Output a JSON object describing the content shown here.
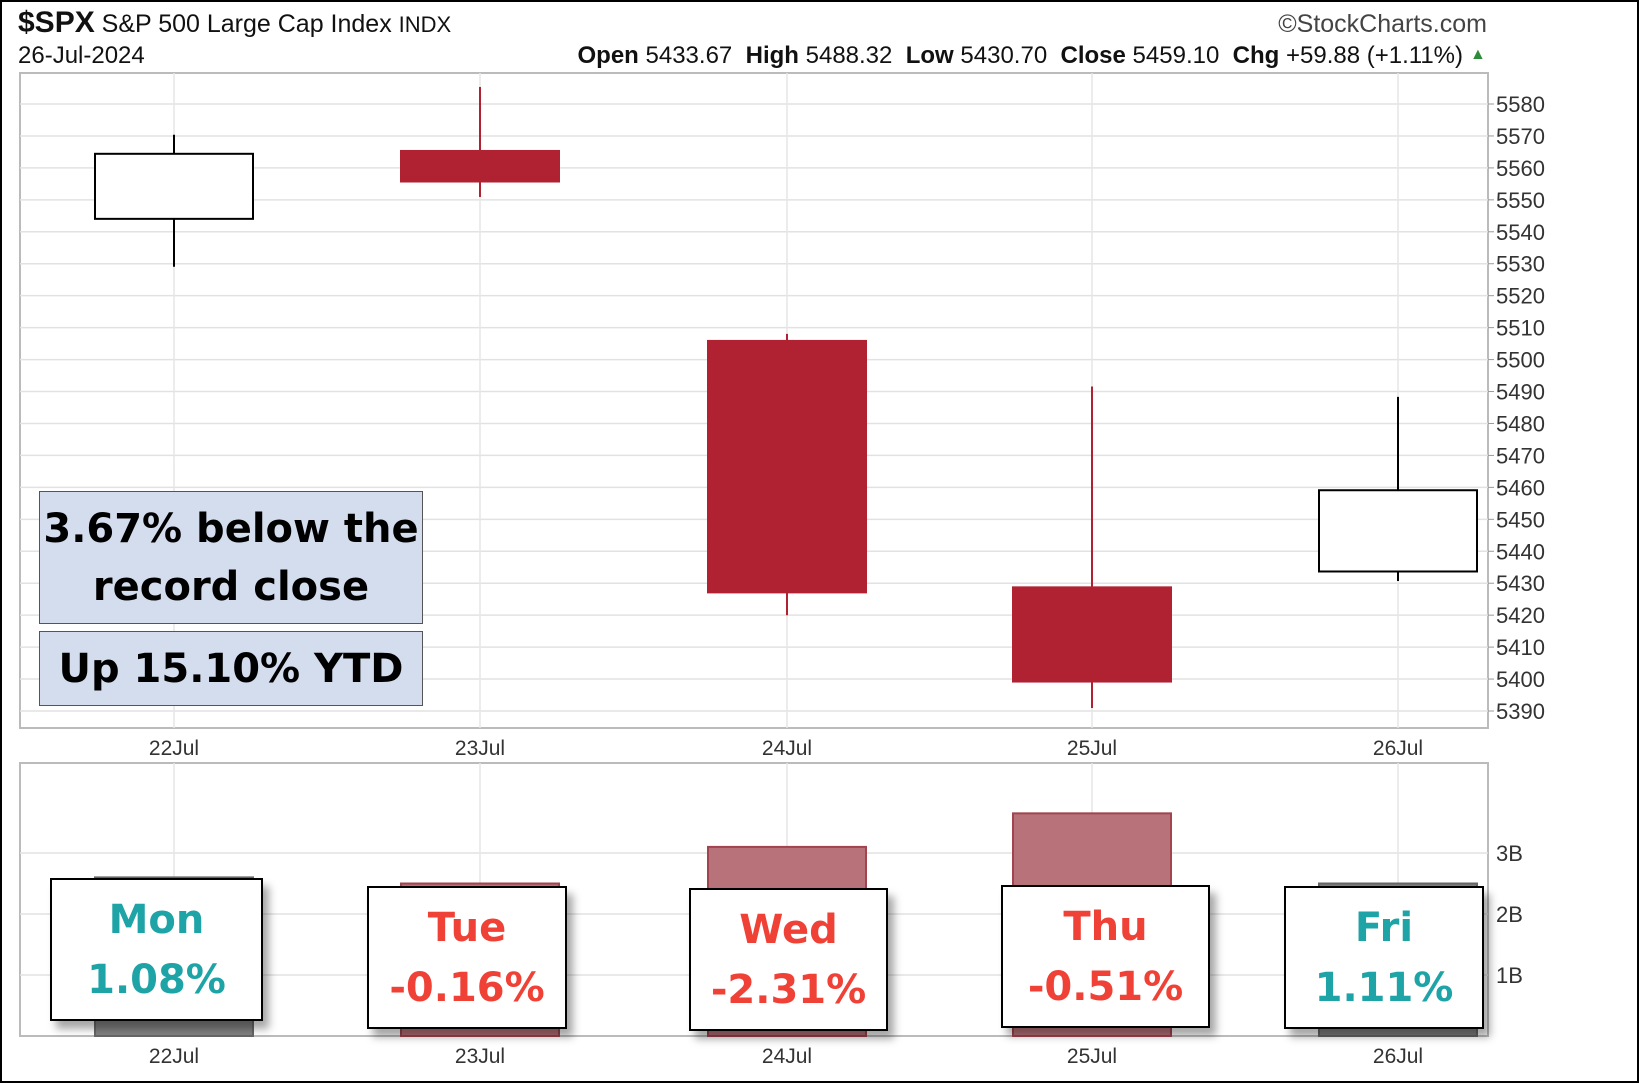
{
  "header": {
    "symbol": "$SPX",
    "name": "S&P 500 Large Cap Index",
    "exchange": "INDX",
    "date": "26-Jul-2024",
    "copyright": "©StockCharts.com",
    "open_label": "Open",
    "open": "5433.67",
    "high_label": "High",
    "high": "5488.32",
    "low_label": "Low",
    "low": "5430.70",
    "close_label": "Close",
    "close": "5459.10",
    "chg_label": "Chg",
    "chg": "+59.88 (+1.11%)",
    "up_color": "#2e8b3a"
  },
  "annotations": {
    "record": "3.67% below the record close",
    "ytd": "Up 15.10% YTD",
    "box_color": "#d3ddee"
  },
  "days": [
    {
      "day": "Mon",
      "pct": "1.08%",
      "color": "#1ea3a6"
    },
    {
      "day": "Tue",
      "pct": "-0.16%",
      "color": "#ef4136"
    },
    {
      "day": "Wed",
      "pct": "-2.31%",
      "color": "#ef4136"
    },
    {
      "day": "Thu",
      "pct": "-0.51%",
      "color": "#ef4136"
    },
    {
      "day": "Fri",
      "pct": "1.11%",
      "color": "#1ea3a6"
    }
  ],
  "chart_data": [
    {
      "type": "candlestick",
      "categories": [
        "22Jul",
        "23Jul",
        "24Jul",
        "25Jul",
        "26Jul"
      ],
      "open": [
        5544.05,
        5565.3,
        5505.84,
        5428.7,
        5433.67
      ],
      "high": [
        5570.36,
        5585.34,
        5508.04,
        5491.59,
        5488.32
      ],
      "low": [
        5529.04,
        5550.9,
        5419.98,
        5390.95,
        5430.7
      ],
      "close": [
        5564.41,
        5555.74,
        5427.13,
        5399.22,
        5459.1
      ],
      "ylim": [
        5385,
        5590
      ],
      "yticks": [
        5390,
        5400,
        5410,
        5420,
        5430,
        5440,
        5450,
        5460,
        5470,
        5480,
        5490,
        5500,
        5510,
        5520,
        5530,
        5540,
        5550,
        5560,
        5570,
        5580
      ],
      "grid": true,
      "colors": {
        "up": "#ffffff",
        "down": "#b02232"
      }
    },
    {
      "type": "bar",
      "categories": [
        "22Jul",
        "23Jul",
        "24Jul",
        "25Jul",
        "26Jul"
      ],
      "values": [
        2.6,
        2.5,
        3.1,
        3.65,
        2.5
      ],
      "unit": "B",
      "yticks": [
        {
          "v": 1,
          "label": "1B"
        },
        {
          "v": 2,
          "label": "2B"
        },
        {
          "v": 3,
          "label": "3B"
        }
      ],
      "ylim": [
        0,
        3.8
      ],
      "grid": true,
      "colors": [
        "#808080",
        "#b8737a",
        "#b8737a",
        "#b8737a",
        "#808080"
      ]
    }
  ]
}
